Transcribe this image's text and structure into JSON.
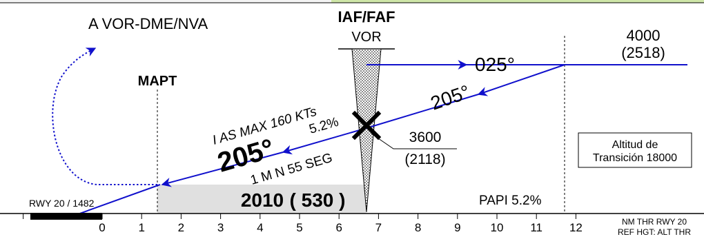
{
  "procedure_title": "A VOR-DME/NVA",
  "fix": {
    "name": "IAF/FAF",
    "type": "VOR"
  },
  "mapt_label": "MAPT",
  "outbound": {
    "course": "025°",
    "altitude": "4000",
    "altitude_hgt": "(2518)"
  },
  "inbound_course_upper": "205°",
  "final": {
    "ias_limit": "I AS  MAX 160 KTs",
    "gradient": "5.2%",
    "course": "205°",
    "timing": "1  M N 55 SEG",
    "fix_altitude": "3600",
    "fix_altitude_hgt": "(2118)"
  },
  "mda": {
    "altitude": "2010",
    "height": "( 530 )"
  },
  "papi": "PAPI 5.2%",
  "transition": {
    "line1": "Altitud de",
    "line2": "Transición 18000"
  },
  "runway": {
    "label": "RWY 20 / 1482"
  },
  "distance_scale": {
    "ticks": [
      "0",
      "1",
      "2",
      "3",
      "4",
      "5",
      "6",
      "7",
      "8",
      "9",
      "10",
      "11",
      "12"
    ],
    "caption_line1": "NM THR RWY 20",
    "caption_line2": "REF HGT: ALT THR"
  },
  "colors": {
    "track": "#1010cc",
    "ink": "#000000",
    "mda_fill": "#e0e0e0",
    "header_green": "#cfe6a8"
  }
}
